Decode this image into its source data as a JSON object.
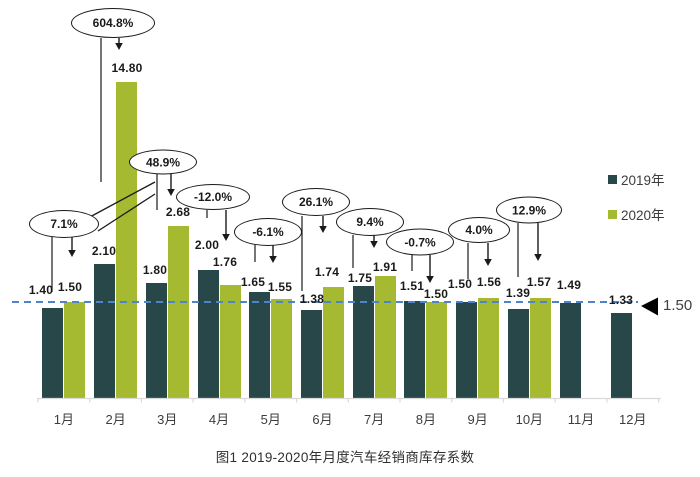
{
  "figure": {
    "caption": "图1  2019-2020年月度汽车经销商库存系数"
  },
  "chart_data": {
    "type": "bar",
    "title": "图1  2019-2020年月度汽车经销商库存系数",
    "categories": [
      "1月",
      "2月",
      "3月",
      "4月",
      "5月",
      "6月",
      "7月",
      "8月",
      "9月",
      "10月",
      "11月",
      "12月"
    ],
    "series": [
      {
        "name": "2019年",
        "color": "#274749",
        "values": [
          1.4,
          2.1,
          1.8,
          2.0,
          1.65,
          1.38,
          1.75,
          1.51,
          1.5,
          1.39,
          1.49,
          1.33
        ]
      },
      {
        "name": "2020年",
        "color": "#a5ba31",
        "values": [
          1.5,
          14.8,
          2.68,
          1.76,
          1.55,
          1.74,
          1.91,
          1.5,
          1.56,
          1.57,
          null,
          null
        ]
      }
    ],
    "value_label_decimals": 2,
    "yoy_change_bubbles": [
      {
        "month": "1月",
        "label": "7.1%"
      },
      {
        "month": "2月",
        "label": "604.8%"
      },
      {
        "month": "3月",
        "label": "48.9%"
      },
      {
        "month": "4月",
        "label": "-12.0%"
      },
      {
        "month": "5月",
        "label": "-6.1%"
      },
      {
        "month": "6月",
        "label": "26.1%"
      },
      {
        "month": "7月",
        "label": "9.4%"
      },
      {
        "month": "8月",
        "label": "-0.7%"
      },
      {
        "month": "9月",
        "label": "4.0%"
      },
      {
        "month": "10月",
        "label": "12.9%"
      }
    ],
    "reference_line": {
      "value": 1.5,
      "marker_label": "1.50",
      "color": "#4d86c8",
      "style": "dashed"
    },
    "axis_break": {
      "series": "2020年",
      "month": "2月",
      "displayed_truncated": true
    },
    "legend_position": "right",
    "grid": "off",
    "colors": {
      "bar_2019": "#274749",
      "bar_2020": "#a5ba31",
      "axis": "#d9d9d9",
      "reference": "#4d86c8",
      "marker": "#000000"
    }
  }
}
